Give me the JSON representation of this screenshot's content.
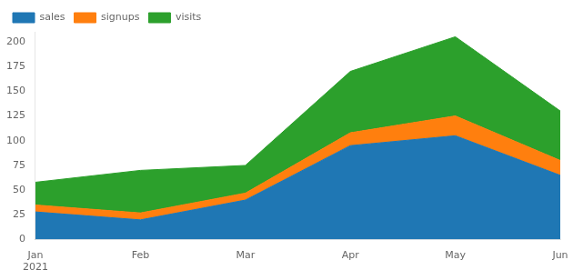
{
  "chart_data": {
    "type": "area",
    "stacked": true,
    "categories": [
      "Jan\n2021",
      "Feb",
      "Mar",
      "Apr",
      "May",
      "Jun"
    ],
    "series": [
      {
        "name": "sales",
        "color": "#1f77b4",
        "values": [
          28,
          20,
          40,
          95,
          105,
          65
        ]
      },
      {
        "name": "signups",
        "color": "#ff7f0e",
        "values": [
          7,
          7,
          7,
          13,
          20,
          15
        ]
      },
      {
        "name": "visits",
        "color": "#2ca02c",
        "values": [
          23,
          43,
          28,
          62,
          80,
          50
        ]
      }
    ],
    "ylim": [
      0,
      210
    ],
    "yticks": [
      0,
      25,
      50,
      75,
      100,
      125,
      150,
      175,
      200
    ],
    "legend": "upper left",
    "grid": false
  }
}
